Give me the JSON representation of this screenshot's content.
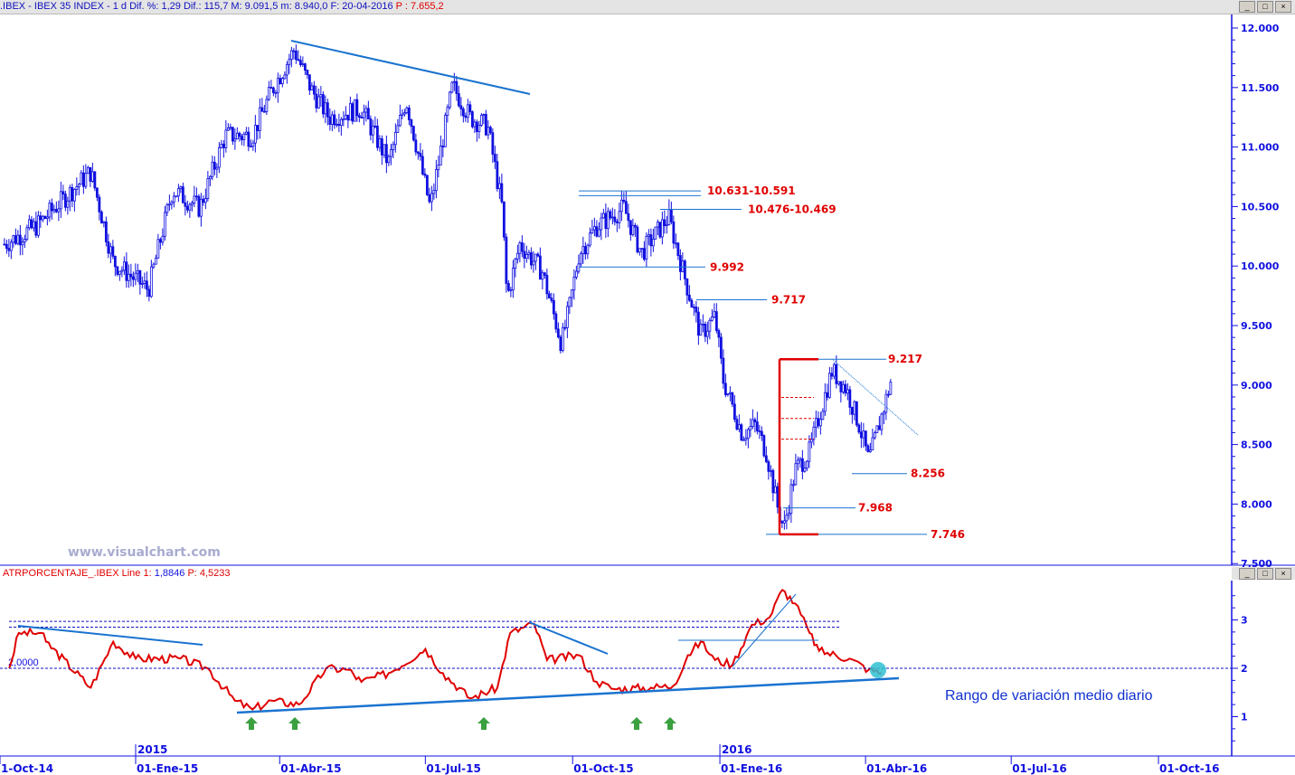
{
  "header": {
    "symbol": ".IBEX - IBEX 35 INDEX -  1 d",
    "dif_pct": "Dif. %: 1,29",
    "dif": "Dif.: 115,7",
    "max": "M: 9.091,5",
    "min": "m: 8.940,0",
    "date": "F: 20-04-2016",
    "price": "P : 7.655,2"
  },
  "window_buttons": [
    "_",
    "□",
    "×"
  ],
  "watermark": "www.visualchart.com",
  "indicator": {
    "title": "ATRPORCENTAJE_.IBEX Line 1:",
    "line1": "1,8846",
    "p": "P: 4,5233",
    "ref_label": "2,0000",
    "caption": "Rango de variación medio diario"
  },
  "colors": {
    "price": "#1010e0",
    "indicator": "#e00000",
    "trend": "#1a73d0",
    "annotation": "#e00000",
    "highlight": "#30c0d0",
    "arrow": "#3aa040"
  },
  "chart_data": [
    {
      "type": "candlestick",
      "ylim": [
        7500,
        12000
      ],
      "y_ticks": [
        "12.000",
        "11.500",
        "11.000",
        "10.500",
        "10.000",
        "9.500",
        "9.000",
        "8.500",
        "8.000",
        "7.500"
      ],
      "x_ticks": [
        "1-Oct-14",
        "01-Ene-15",
        "01-Abr-15",
        "01-Jul-15",
        "01-Oct-15",
        "01-Ene-16",
        "01-Abr-16",
        "01-Jul-16",
        "01-Oct-16"
      ],
      "year_markers": [
        "2015",
        "2016"
      ],
      "close_path": [
        [
          "2014-10-11",
          10184
        ],
        [
          "2014-10-31",
          10336
        ],
        [
          "2014-12-04",
          10792
        ],
        [
          "2014-12-18",
          10032
        ],
        [
          "2015-01-09",
          9804
        ],
        [
          "2015-01-24",
          10640
        ],
        [
          "2015-02-10",
          10488
        ],
        [
          "2015-02-26",
          11096
        ],
        [
          "2015-03-15",
          11096
        ],
        [
          "2015-03-27",
          11476
        ],
        [
          "2015-04-10",
          11818
        ],
        [
          "2015-04-21",
          11476
        ],
        [
          "2015-05-02",
          11248
        ],
        [
          "2015-05-22",
          11324
        ],
        [
          "2015-06-08",
          10868
        ],
        [
          "2015-06-19",
          11400
        ],
        [
          "2015-07-04",
          10488
        ],
        [
          "2015-07-18",
          11514
        ],
        [
          "2015-07-29",
          11248
        ],
        [
          "2015-08-09",
          11172
        ],
        [
          "2015-08-18",
          10488
        ],
        [
          "2015-08-21",
          9728
        ],
        [
          "2015-08-29",
          10184
        ],
        [
          "2015-09-12",
          9956
        ],
        [
          "2015-09-24",
          9348
        ],
        [
          "2015-09-29",
          9652
        ],
        [
          "2015-10-05",
          10108
        ],
        [
          "2015-10-16",
          10336
        ],
        [
          "2015-11-02",
          10488
        ],
        [
          "2015-11-13",
          10108
        ],
        [
          "2015-11-30",
          10412
        ],
        [
          "2015-12-12",
          9804
        ],
        [
          "2015-12-20",
          9424
        ],
        [
          "2015-12-29",
          9576
        ],
        [
          "2016-01-03",
          9044
        ],
        [
          "2016-01-15",
          8588
        ],
        [
          "2016-01-23",
          8664
        ],
        [
          "2016-01-30",
          8436
        ],
        [
          "2016-02-06",
          7980
        ],
        [
          "2016-02-10",
          7790
        ],
        [
          "2016-02-17",
          8284
        ],
        [
          "2016-02-26",
          8436
        ],
        [
          "2016-03-03",
          8740
        ],
        [
          "2016-03-11",
          9120
        ],
        [
          "2016-03-20",
          8968
        ],
        [
          "2016-03-28",
          8664
        ],
        [
          "2016-04-03",
          8360
        ],
        [
          "2016-04-11",
          8740
        ],
        [
          "2016-04-17",
          9044
        ]
      ],
      "levels": [
        {
          "label": "10.631-10.591",
          "values": [
            10631,
            10591
          ]
        },
        {
          "label": "10.476-10.469",
          "values": [
            10476
          ]
        },
        {
          "label": "9.992",
          "values": [
            9992
          ]
        },
        {
          "label": "9.717",
          "values": [
            9717
          ]
        },
        {
          "label": "9.217",
          "values": [
            9217
          ]
        },
        {
          "label": "8.256",
          "values": [
            8256
          ]
        },
        {
          "label": "7.968",
          "values": [
            7968
          ]
        },
        {
          "label": "7.746",
          "values": [
            7746
          ]
        }
      ]
    },
    {
      "type": "line",
      "name": "ATRPORCENTAJE_.IBEX",
      "ylim": [
        0.4,
        3.7
      ],
      "y_ticks": [
        "3",
        "2",
        "1"
      ],
      "reference_lines": [
        2.0,
        2.85,
        2.97
      ],
      "values": [
        [
          "2014-10-14",
          2.0
        ],
        [
          "2014-10-20",
          2.73
        ],
        [
          "2014-11-03",
          2.73
        ],
        [
          "2014-11-06",
          2.55
        ],
        [
          "2014-12-04",
          1.6
        ],
        [
          "2014-12-18",
          2.55
        ],
        [
          "2015-01-01",
          2.2
        ],
        [
          "2015-01-29",
          2.2
        ],
        [
          "2015-02-15",
          2.0
        ],
        [
          "2015-03-04",
          1.33
        ],
        [
          "2015-03-15",
          1.15
        ],
        [
          "2015-03-27",
          1.33
        ],
        [
          "2015-04-13",
          1.25
        ],
        [
          "2015-04-30",
          2.0
        ],
        [
          "2015-05-14",
          1.97
        ],
        [
          "2015-05-22",
          1.72
        ],
        [
          "2015-06-08",
          1.9
        ],
        [
          "2015-07-01",
          2.4
        ],
        [
          "2015-07-12",
          1.9
        ],
        [
          "2015-07-29",
          1.38
        ],
        [
          "2015-08-15",
          1.6
        ],
        [
          "2015-08-23",
          2.73
        ],
        [
          "2015-09-07",
          2.92
        ],
        [
          "2015-09-15",
          2.17
        ],
        [
          "2015-10-05",
          2.27
        ],
        [
          "2015-10-16",
          1.72
        ],
        [
          "2015-10-27",
          1.57
        ],
        [
          "2015-11-19",
          1.6
        ],
        [
          "2015-12-03",
          1.64
        ],
        [
          "2015-12-12",
          2.27
        ],
        [
          "2015-12-20",
          2.55
        ],
        [
          "2015-12-29",
          2.17
        ],
        [
          "2016-01-09",
          2.08
        ],
        [
          "2016-01-21",
          2.9
        ],
        [
          "2016-02-01",
          3.05
        ],
        [
          "2016-02-09",
          3.62
        ],
        [
          "2016-02-17",
          3.34
        ],
        [
          "2016-02-26",
          2.73
        ],
        [
          "2016-03-03",
          2.36
        ],
        [
          "2016-03-22",
          2.2
        ],
        [
          "2016-04-03",
          1.97
        ],
        [
          "2016-04-11",
          1.9
        ]
      ]
    }
  ]
}
